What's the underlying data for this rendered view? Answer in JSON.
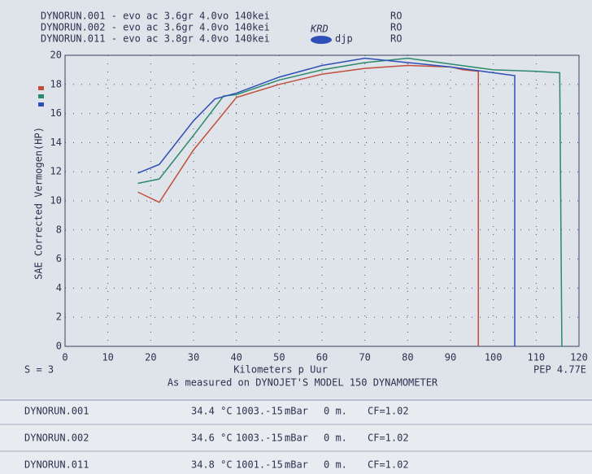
{
  "chart_data": {
    "type": "line",
    "series": [
      {
        "name": "DYNORUN.001 - evo ac 3.6gr 4.0vo 140kei",
        "tag": "RO",
        "color": "#c0503a",
        "x": [
          17,
          22,
          30,
          40,
          50,
          60,
          70,
          80,
          90,
          93,
          96.5,
          96.5
        ],
        "values": [
          10.6,
          9.9,
          13.5,
          17.1,
          18.0,
          18.7,
          19.1,
          19.3,
          19.2,
          19.0,
          18.9,
          0
        ]
      },
      {
        "name": "DYNORUN.002 - evo ac 3.6gr 4.0vo 140kei",
        "tag": "RO",
        "color": "#2a8a6a",
        "x": [
          17,
          22,
          30,
          37,
          40,
          50,
          60,
          70,
          80,
          90,
          100,
          110,
          115.5,
          116
        ],
        "values": [
          11.2,
          11.5,
          14.5,
          17.2,
          17.3,
          18.3,
          19.0,
          19.5,
          19.8,
          19.4,
          19.0,
          18.9,
          18.8,
          0
        ]
      },
      {
        "name": "DYNORUN.011 - evo ac 3.8gr 4.0vo 140kei",
        "tag": "RO",
        "color": "#2f4fb8",
        "x": [
          17,
          22,
          30,
          35,
          40,
          50,
          60,
          70,
          80,
          90,
          100,
          105,
          105
        ],
        "values": [
          11.9,
          12.5,
          15.5,
          17.0,
          17.4,
          18.5,
          19.3,
          19.8,
          19.5,
          19.2,
          18.8,
          18.6,
          0
        ]
      }
    ],
    "annotations": [
      "KRD",
      "djp"
    ],
    "y_label": "SAE Corrected Vermogen(HP)",
    "x_label": "Kilometers p Uur",
    "smoothing": "S = 3",
    "pep": "PEP 4.77E",
    "footer": "As measured on DYNOJET'S MODEL 150 DYNAMOMETER",
    "xlim": [
      0,
      120
    ],
    "xticks": [
      0,
      10,
      20,
      30,
      40,
      50,
      60,
      70,
      80,
      90,
      100,
      110,
      120
    ],
    "ylim": [
      0,
      20
    ],
    "yticks": [
      0,
      2,
      4,
      6,
      8,
      10,
      12,
      14,
      16,
      18,
      20
    ],
    "grid": true
  },
  "table": {
    "rows": [
      [
        "DYNORUN.001",
        "34.4 °C",
        "1003.-15.",
        "mBar",
        "0 m.",
        "CF=1.02"
      ],
      [
        "DYNORUN.002",
        "34.6 °C",
        "1003.-15.",
        "mBar",
        "0 m.",
        "CF=1.02"
      ],
      [
        "DYNORUN.011",
        "34.8 °C",
        "1001.-15.",
        "mBar",
        "0 m.",
        "CF=1.02"
      ]
    ]
  }
}
